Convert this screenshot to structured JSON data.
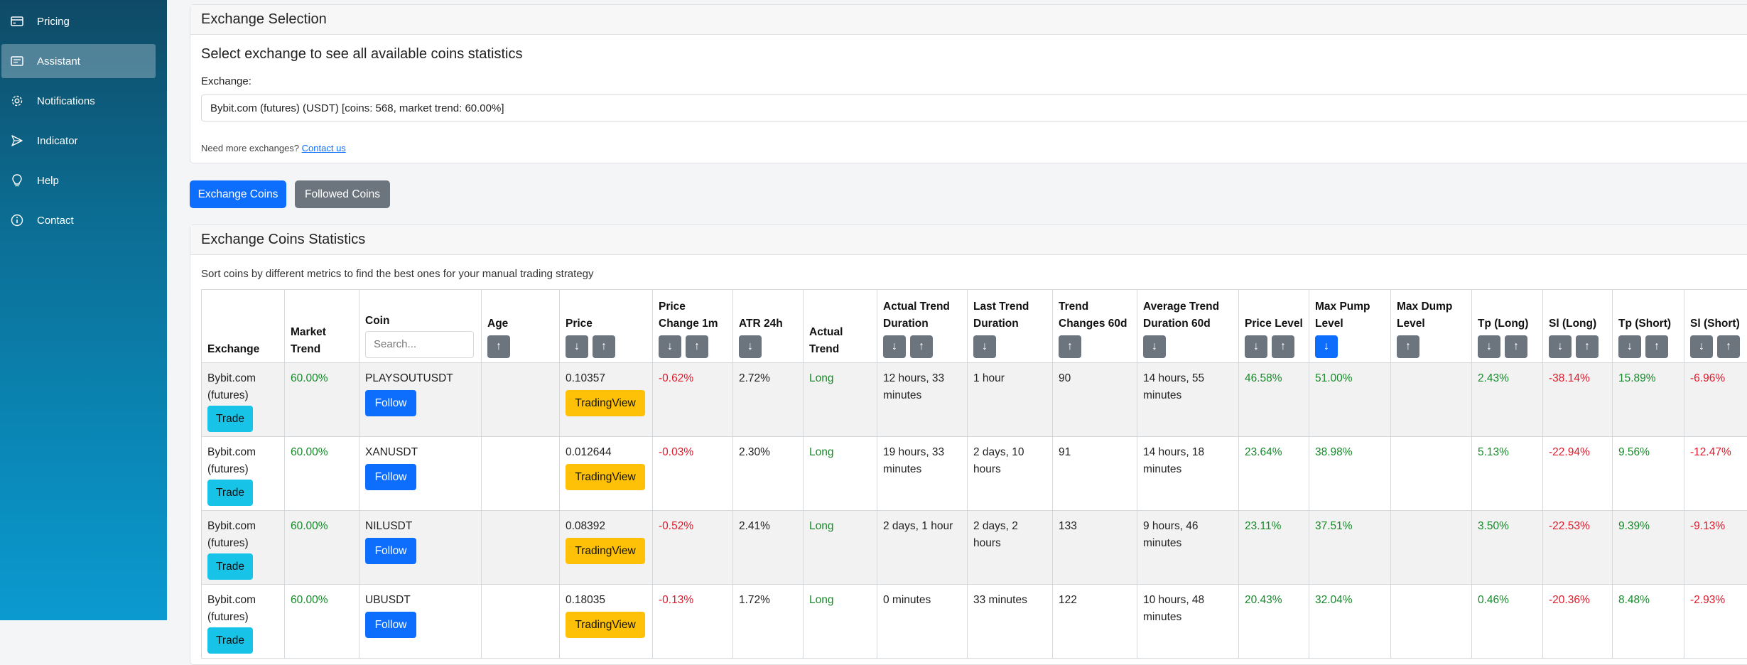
{
  "sidebar": {
    "items": [
      {
        "label": "Pricing",
        "icon": "card-icon"
      },
      {
        "label": "Assistant",
        "icon": "assistant-icon"
      },
      {
        "label": "Notifications",
        "icon": "gear-icon"
      },
      {
        "label": "Indicator",
        "icon": "send-icon"
      },
      {
        "label": "Help",
        "icon": "lightbulb-icon"
      },
      {
        "label": "Contact",
        "icon": "info-icon"
      }
    ]
  },
  "exchange_selection": {
    "header": "Exchange Selection",
    "title": "Select exchange to see all available coins statistics",
    "label": "Exchange:",
    "selected": "Bybit.com (futures) (USDT) [coins: 568, market trend: 60.00%]",
    "more_text": "Need more exchanges?",
    "contact_link": "Contact us"
  },
  "tabs": {
    "exchange_coins": "Exchange Coins",
    "followed_coins": "Followed Coins"
  },
  "stats": {
    "header": "Exchange Coins Statistics",
    "description": "Sort coins by different metrics to find the best ones for your manual trading strategy",
    "search_placeholder": "Search...",
    "columns": {
      "exchange": "Exchange",
      "market_trend": "Market Trend",
      "coin": "Coin",
      "age": "Age",
      "price": "Price",
      "price_change": "Price Change 1m",
      "atr": "ATR 24h",
      "actual_trend": "Actual Trend",
      "actual_trend_duration": "Actual Trend Duration",
      "last_trend_duration": "Last Trend Duration",
      "trend_changes": "Trend Changes 60d",
      "avg_trend_duration": "Average Trend Duration 60d",
      "price_level": "Price Level",
      "max_pump": "Max Pump Level",
      "max_dump": "Max Dump Level",
      "tp_long": "Tp (Long)",
      "sl_long": "Sl (Long)",
      "tp_short": "Tp (Short)",
      "sl_short": "Sl (Short)"
    },
    "sort_down": "↓",
    "sort_up": "↑",
    "trade_label": "Trade",
    "follow_label": "Follow",
    "tv_label": "TradingView",
    "rows": [
      {
        "exchange": "Bybit.com (futures)",
        "market_trend": "60.00%",
        "coin": "PLAYSOUTUSDT",
        "price": "0.10357",
        "price_change": "-0.62%",
        "atr": "2.72%",
        "trend": "Long",
        "actual_duration": "12 hours, 33 minutes",
        "last_duration": "1 hour",
        "changes": "90",
        "avg_duration": "14 hours, 55 minutes",
        "price_level": "46.58%",
        "max_pump": "51.00%",
        "tp_long": "2.43%",
        "sl_long": "-38.14%",
        "tp_short": "15.89%",
        "sl_short": "-6.96%"
      },
      {
        "exchange": "Bybit.com (futures)",
        "market_trend": "60.00%",
        "coin": "XANUSDT",
        "price": "0.012644",
        "price_change": "-0.03%",
        "atr": "2.30%",
        "trend": "Long",
        "actual_duration": "19 hours, 33 minutes",
        "last_duration": "2 days, 10 hours",
        "changes": "91",
        "avg_duration": "14 hours, 18 minutes",
        "price_level": "23.64%",
        "max_pump": "38.98%",
        "tp_long": "5.13%",
        "sl_long": "-22.94%",
        "tp_short": "9.56%",
        "sl_short": "-12.47%"
      },
      {
        "exchange": "Bybit.com (futures)",
        "market_trend": "60.00%",
        "coin": "NILUSDT",
        "price": "0.08392",
        "price_change": "-0.52%",
        "atr": "2.41%",
        "trend": "Long",
        "actual_duration": "2 days, 1 hour",
        "last_duration": "2 days, 2 hours",
        "changes": "133",
        "avg_duration": "9 hours, 46 minutes",
        "price_level": "23.11%",
        "max_pump": "37.51%",
        "tp_long": "3.50%",
        "sl_long": "-22.53%",
        "tp_short": "9.39%",
        "sl_short": "-9.13%"
      },
      {
        "exchange": "Bybit.com (futures)",
        "market_trend": "60.00%",
        "coin": "UBUSDT",
        "price": "0.18035",
        "price_change": "-0.13%",
        "atr": "1.72%",
        "trend": "Long",
        "actual_duration": "0 minutes",
        "last_duration": "33 minutes",
        "changes": "122",
        "avg_duration": "10 hours, 48 minutes",
        "price_level": "20.43%",
        "max_pump": "32.04%",
        "tp_long": "0.46%",
        "sl_long": "-20.36%",
        "tp_short": "8.48%",
        "sl_short": "-2.93%"
      }
    ]
  }
}
